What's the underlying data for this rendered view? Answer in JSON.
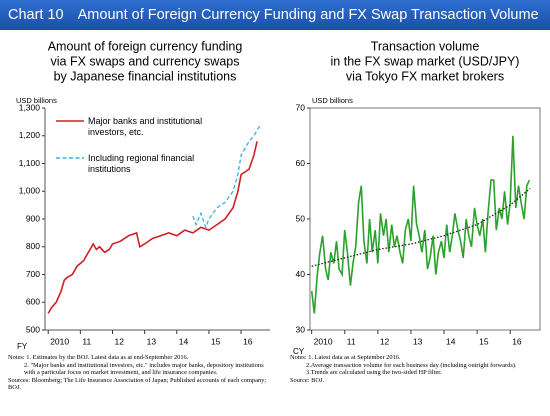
{
  "header": {
    "chart_no": "Chart 10",
    "title": "Amount of Foreign Currency Funding and FX Swap Transaction Volume"
  },
  "chart_data": [
    {
      "type": "line",
      "title_lines": [
        "Amount of foreign currency funding",
        "via FX swaps and currency swaps",
        "by Japanese financial institutions"
      ],
      "y_unit": "USD billions",
      "x_label": "FY",
      "xlim": [
        2009.9,
        2016.9
      ],
      "xticks": [
        2010,
        {
          "value": 2011,
          "label": "11"
        },
        {
          "value": 2012,
          "label": "12"
        },
        {
          "value": 2013,
          "label": "13"
        },
        {
          "value": 2014,
          "label": "14"
        },
        {
          "value": 2015,
          "label": "15"
        },
        {
          "value": 2016,
          "label": "16"
        }
      ],
      "ylim": [
        500,
        1300
      ],
      "yticks": [
        500,
        600,
        700,
        800,
        900,
        {
          "value": 1000,
          "label": "1,000"
        },
        {
          "value": 1100,
          "label": "1,100"
        },
        {
          "value": 1200,
          "label": "1,200"
        },
        {
          "value": 1300,
          "label": "1,300"
        }
      ],
      "series": [
        {
          "name": "Major banks and institutional investors, etc.",
          "color": "#d01f26",
          "line_style": "solid",
          "x": [
            2010.0,
            2010.1,
            2010.25,
            2010.4,
            2010.5,
            2010.6,
            2010.75,
            2010.9,
            2011.0,
            2011.1,
            2011.25,
            2011.4,
            2011.5,
            2011.6,
            2011.75,
            2011.9,
            2012.0,
            2012.25,
            2012.5,
            2012.75,
            2012.85,
            2013.0,
            2013.25,
            2013.5,
            2013.75,
            2014.0,
            2014.25,
            2014.5,
            2014.75,
            2015.0,
            2015.25,
            2015.5,
            2015.75,
            2015.9,
            2016.0,
            2016.25,
            2016.4,
            2016.5
          ],
          "values": [
            560,
            580,
            600,
            640,
            680,
            690,
            700,
            730,
            740,
            750,
            780,
            810,
            790,
            800,
            780,
            790,
            810,
            820,
            840,
            850,
            800,
            810,
            830,
            840,
            850,
            840,
            860,
            850,
            870,
            860,
            880,
            900,
            940,
            1000,
            1060,
            1080,
            1130,
            1180
          ]
        },
        {
          "name": "Including regional financial institutions",
          "color": "#3bb3e0",
          "line_style": "dashed",
          "x": [
            2014.5,
            2014.6,
            2014.75,
            2014.9,
            2015.0,
            2015.25,
            2015.5,
            2015.75,
            2015.9,
            2016.0,
            2016.25,
            2016.4,
            2016.6
          ],
          "values": [
            910,
            880,
            920,
            870,
            900,
            940,
            960,
            1000,
            1060,
            1130,
            1180,
            1200,
            1240
          ]
        }
      ]
    },
    {
      "type": "line",
      "title_lines": [
        "Transaction volume",
        "in the FX swap market (USD/JPY)",
        "via Tokyo FX market brokers"
      ],
      "y_unit": "USD billions",
      "x_label": "CY",
      "xlim": [
        2009.95,
        2016.9
      ],
      "xticks": [
        2010,
        {
          "value": 2011,
          "label": "11"
        },
        {
          "value": 2012,
          "label": "12"
        },
        {
          "value": 2013,
          "label": "13"
        },
        {
          "value": 2014,
          "label": "14"
        },
        {
          "value": 2015,
          "label": "15"
        },
        {
          "value": 2016,
          "label": "16"
        }
      ],
      "ylim": [
        30,
        70
      ],
      "yticks": [
        30,
        40,
        50,
        60,
        70
      ],
      "series": [
        {
          "color": "#2ca02c",
          "line_style": "solid",
          "x": [
            2010.0,
            2010.08,
            2010.17,
            2010.25,
            2010.33,
            2010.42,
            2010.5,
            2010.58,
            2010.67,
            2010.75,
            2010.83,
            2010.92,
            2011.0,
            2011.08,
            2011.17,
            2011.25,
            2011.33,
            2011.42,
            2011.5,
            2011.58,
            2011.67,
            2011.75,
            2011.83,
            2011.92,
            2012.0,
            2012.08,
            2012.17,
            2012.25,
            2012.33,
            2012.42,
            2012.5,
            2012.58,
            2012.67,
            2012.75,
            2012.83,
            2012.92,
            2013.0,
            2013.08,
            2013.17,
            2013.25,
            2013.33,
            2013.42,
            2013.5,
            2013.58,
            2013.67,
            2013.75,
            2013.83,
            2013.92,
            2014.0,
            2014.08,
            2014.17,
            2014.25,
            2014.33,
            2014.42,
            2014.5,
            2014.58,
            2014.67,
            2014.75,
            2014.83,
            2014.92,
            2015.0,
            2015.08,
            2015.17,
            2015.25,
            2015.33,
            2015.42,
            2015.5,
            2015.58,
            2015.67,
            2015.75,
            2015.83,
            2015.92,
            2016.0,
            2016.08,
            2016.17,
            2016.25,
            2016.33,
            2016.42,
            2016.5,
            2016.58
          ],
          "values": [
            37,
            33,
            40,
            44,
            47,
            41,
            39,
            44,
            42,
            46,
            41,
            40,
            48,
            44,
            38,
            42,
            45,
            53,
            56,
            46,
            42,
            50,
            44,
            48,
            42,
            51,
            47,
            50,
            44,
            49,
            45,
            47,
            44,
            42,
            48,
            50,
            46,
            56,
            49,
            47,
            44,
            48,
            41,
            43,
            47,
            40,
            44,
            46,
            43,
            49,
            44,
            47,
            51,
            48,
            46,
            43,
            50,
            47,
            45,
            52,
            49,
            47,
            50,
            44,
            51,
            57,
            57,
            48,
            52,
            50,
            55,
            49,
            53,
            65,
            52,
            56,
            53,
            50,
            56,
            57
          ]
        },
        {
          "color": "#222222",
          "line_style": "dotted",
          "x": [
            2010.0,
            2011.0,
            2012.0,
            2013.0,
            2014.0,
            2015.0,
            2016.0,
            2016.6
          ],
          "values": [
            41.5,
            43,
            44.5,
            45.5,
            47,
            49,
            52.5,
            55.5
          ]
        }
      ]
    }
  ],
  "notes": {
    "left": [
      "Notes: 1. Estimates by the BOJ. Latest data as at end-September 2016.",
      "2. \"Major banks and institutional investors, etc.\" includes major banks, depository institutions with a particular focus on market investment, and life insurance companies.",
      "Sources: Bloomberg; The Life Insurance Association of Japan; Published accounts of each company; BOJ."
    ],
    "right": [
      "Notes: 1. Latest data as at September 2016.",
      "2.Average transaction volume for each business day (including outright forwards).",
      "3.Trends are calculated using the two-sided HP filter.",
      "Source: BOJ."
    ]
  }
}
